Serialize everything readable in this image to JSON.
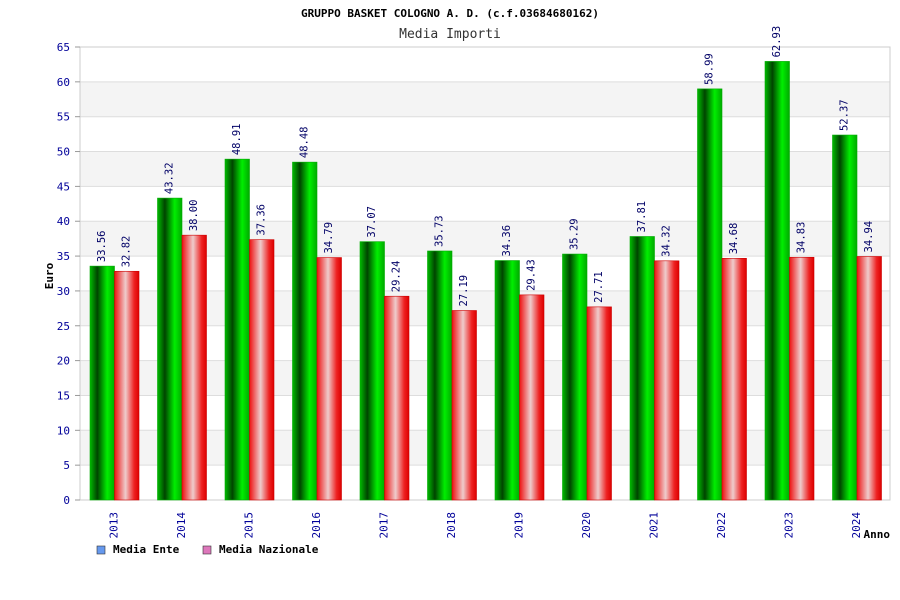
{
  "chart_data": {
    "type": "bar",
    "title": "GRUPPO BASKET COLOGNO A. D. (c.f.03684680162)",
    "subtitle": "Media Importi",
    "xlabel": "Anno",
    "ylabel": "Euro",
    "ylim": [
      0,
      65
    ],
    "yticks": [
      0,
      5,
      10,
      15,
      20,
      25,
      30,
      35,
      40,
      45,
      50,
      55,
      60,
      65
    ],
    "grid": true,
    "legend_position": "bottom-left",
    "categories": [
      "2013",
      "2014",
      "2015",
      "2016",
      "2017",
      "2018",
      "2019",
      "2020",
      "2021",
      "2022",
      "2023",
      "2024"
    ],
    "series": [
      {
        "name": "Media Ente",
        "color": "#00cc00",
        "legend_color": "#6699ee",
        "values": [
          33.56,
          43.32,
          48.91,
          48.48,
          37.07,
          35.73,
          34.36,
          35.29,
          37.81,
          58.99,
          62.93,
          52.37
        ],
        "labels": [
          "33.56",
          "43.32",
          "48.91",
          "48.48",
          "37.07",
          "35.73",
          "34.36",
          "35.29",
          "37.81",
          "58.99",
          "62.93",
          "52.37"
        ]
      },
      {
        "name": "Media Nazionale",
        "color": "#ee1111",
        "legend_color": "#dd77bb",
        "values": [
          32.82,
          38.0,
          37.36,
          34.79,
          29.24,
          27.19,
          29.43,
          27.71,
          34.32,
          34.68,
          34.83,
          34.94
        ],
        "labels": [
          "32.82",
          "38.00",
          "37.36",
          "34.79",
          "29.24",
          "27.19",
          "29.43",
          "27.71",
          "34.32",
          "34.68",
          "34.83",
          "34.94"
        ]
      }
    ]
  }
}
